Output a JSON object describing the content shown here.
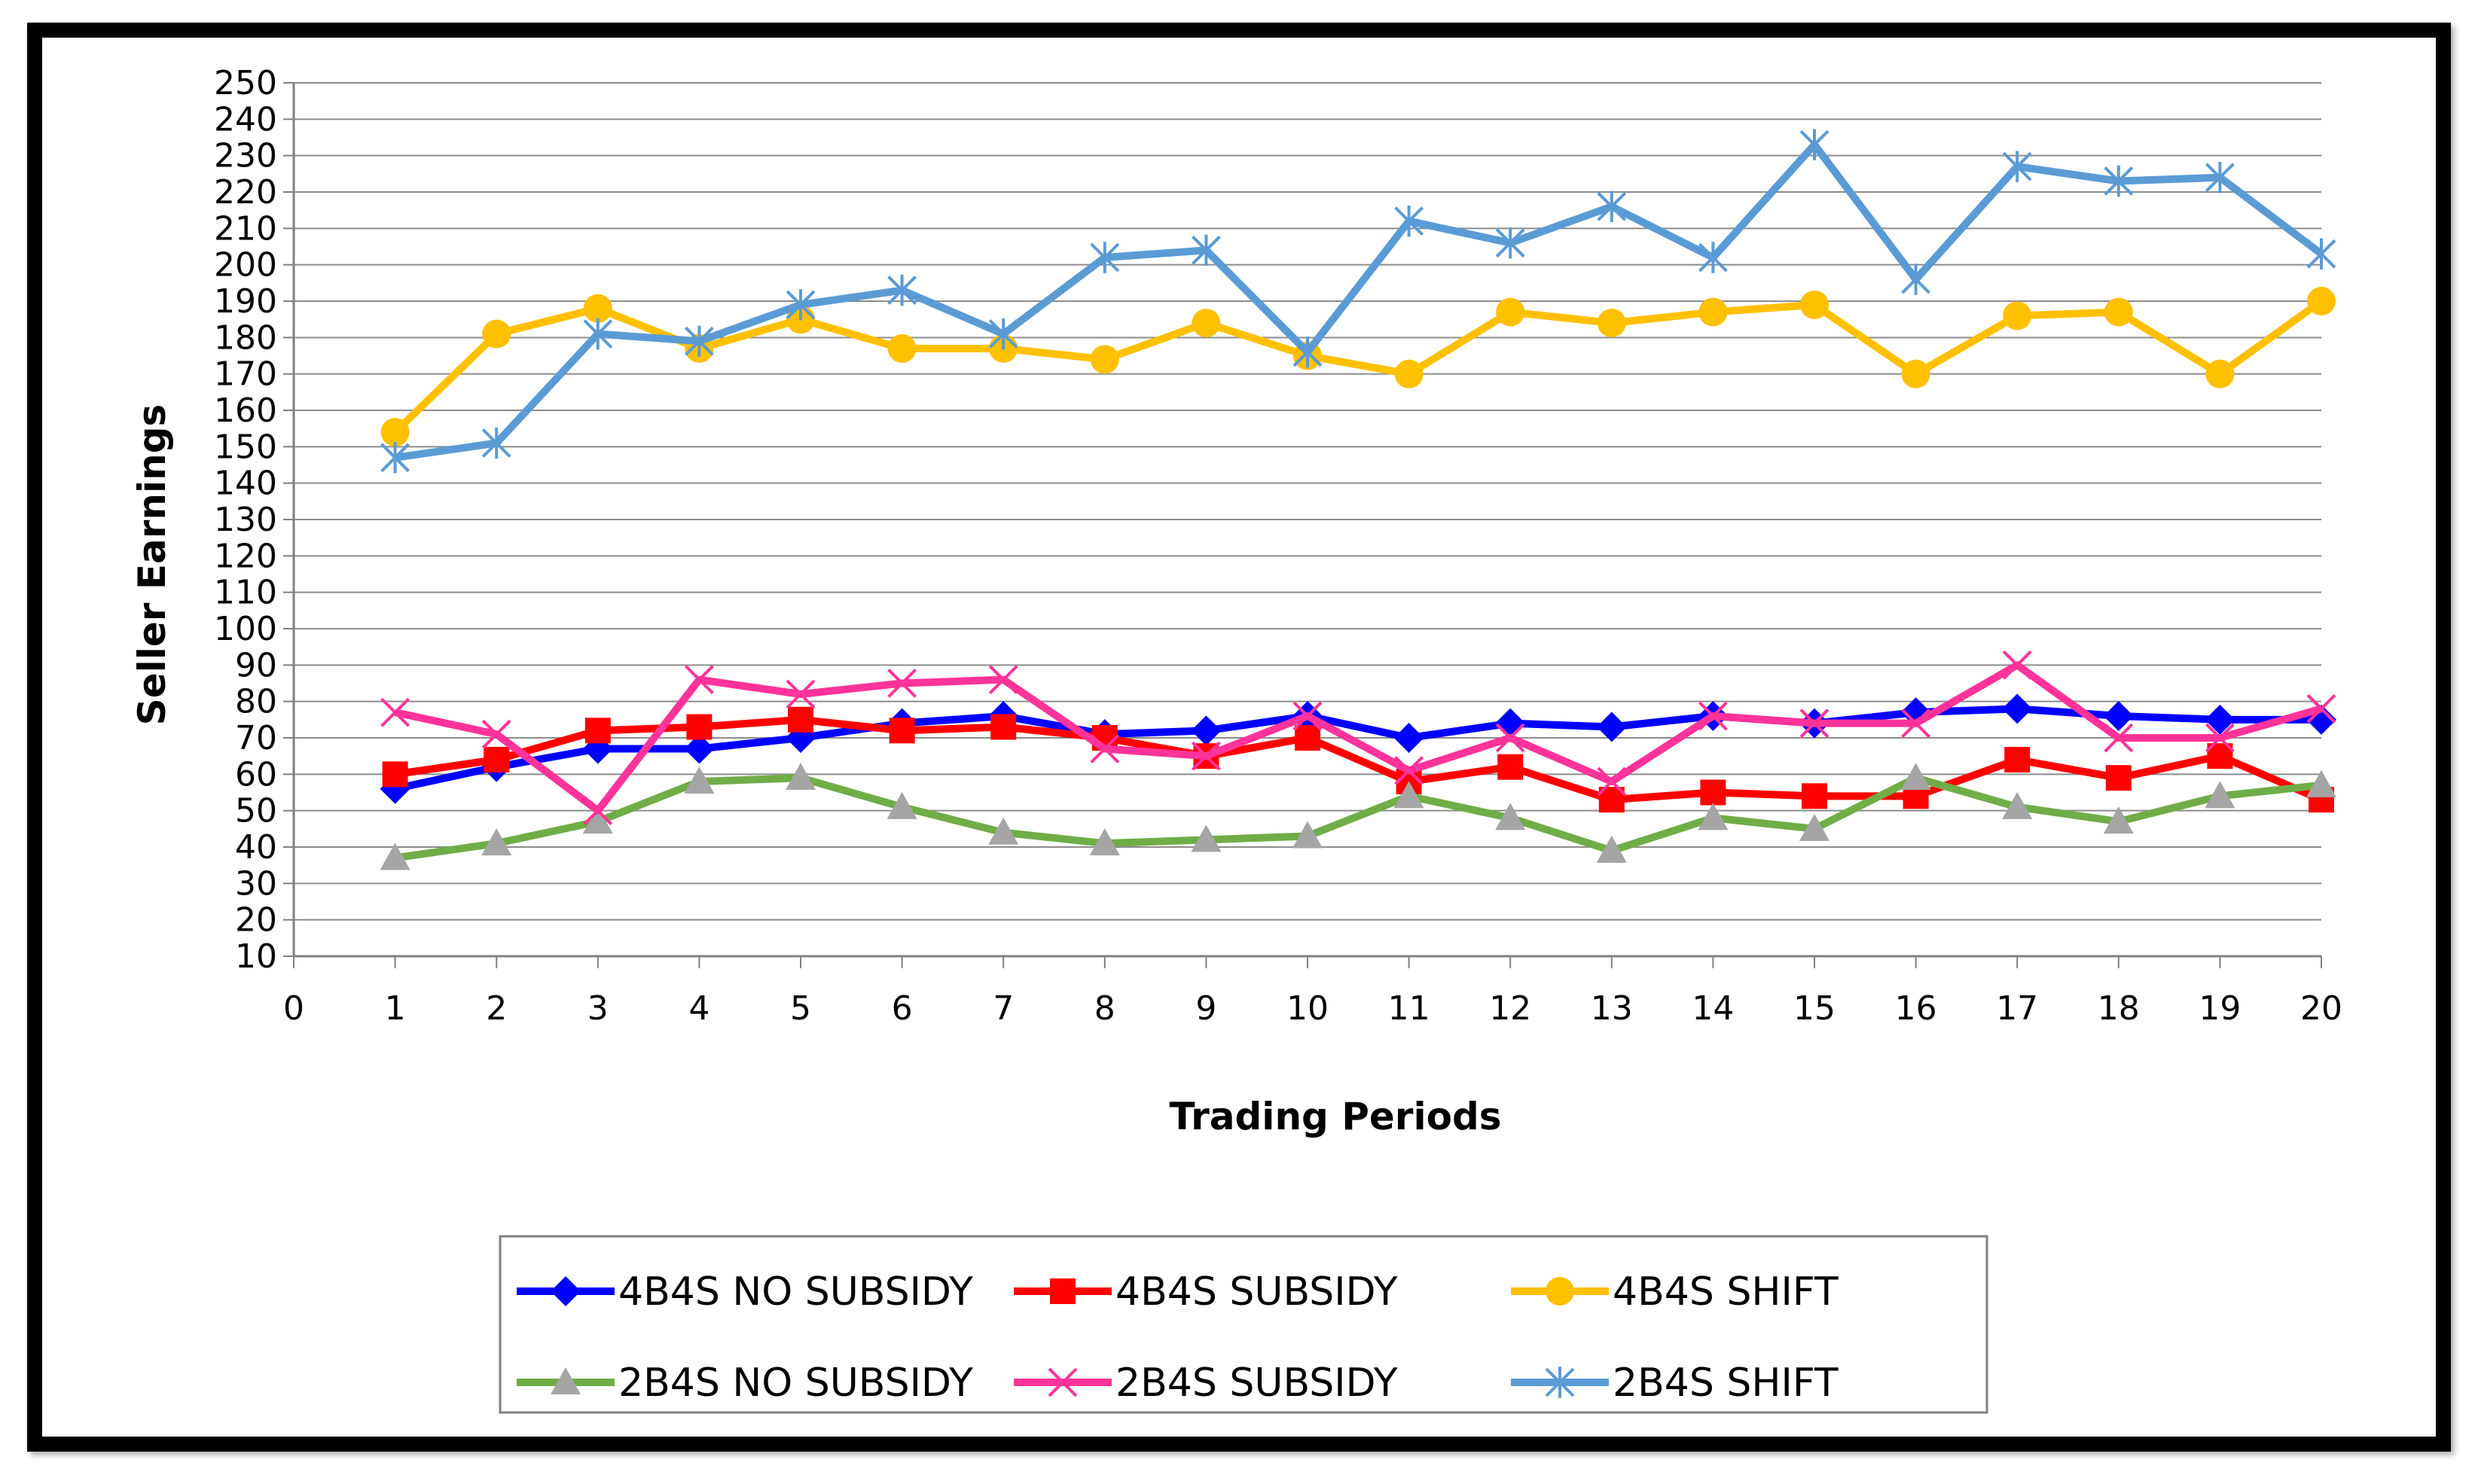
{
  "chart_data": {
    "type": "line",
    "title": "",
    "xlabel": "Trading Periods",
    "ylabel": "Seller Earnings",
    "xlim": [
      0,
      20
    ],
    "ylim": [
      10,
      250
    ],
    "x_ticks": [
      0,
      1,
      2,
      3,
      4,
      5,
      6,
      7,
      8,
      9,
      10,
      11,
      12,
      13,
      14,
      15,
      16,
      17,
      18,
      19,
      20
    ],
    "y_ticks": [
      10,
      20,
      30,
      40,
      50,
      60,
      70,
      80,
      90,
      100,
      110,
      120,
      130,
      140,
      150,
      160,
      170,
      180,
      190,
      200,
      210,
      220,
      230,
      240,
      250
    ],
    "grid": "horizontal",
    "legend_position": "bottom",
    "x": [
      1,
      2,
      3,
      4,
      5,
      6,
      7,
      8,
      9,
      10,
      11,
      12,
      13,
      14,
      15,
      16,
      17,
      18,
      19,
      20
    ],
    "series": [
      {
        "name": "4B4S NO SUBSIDY",
        "color": "#0000FF",
        "marker": "diamond",
        "values": [
          56,
          62,
          67,
          67,
          70,
          74,
          76,
          71,
          72,
          76,
          70,
          74,
          73,
          76,
          74,
          77,
          78,
          76,
          75,
          75
        ]
      },
      {
        "name": "4B4S SUBSIDY",
        "color": "#FF0000",
        "marker": "square",
        "values": [
          60,
          64,
          72,
          73,
          75,
          72,
          73,
          70,
          65,
          70,
          58,
          62,
          53,
          55,
          54,
          54,
          64,
          59,
          65,
          53
        ]
      },
      {
        "name": "4B4S SHIFT",
        "color": "#FFC000",
        "marker": "circle",
        "values": [
          154,
          181,
          188,
          177,
          185,
          177,
          177,
          174,
          184,
          175,
          170,
          187,
          184,
          187,
          189,
          170,
          186,
          187,
          170,
          190
        ]
      },
      {
        "name": "2B4S NO SUBSIDY",
        "color": "#70AD47",
        "marker": "triangle",
        "values": [
          37,
          41,
          47,
          58,
          59,
          51,
          44,
          41,
          42,
          43,
          54,
          48,
          39,
          48,
          45,
          59,
          51,
          47,
          54,
          57
        ]
      },
      {
        "name": "2B4S SUBSIDY",
        "color": "#FF3399",
        "marker": "x",
        "values": [
          77,
          71,
          50,
          86,
          82,
          85,
          86,
          67,
          65,
          76,
          61,
          70,
          58,
          76,
          74,
          74,
          90,
          70,
          70,
          78
        ]
      },
      {
        "name": "2B4S SHIFT",
        "color": "#5B9BD5",
        "marker": "star",
        "values": [
          147,
          151,
          181,
          179,
          189,
          193,
          181,
          202,
          204,
          176,
          212,
          206,
          216,
          202,
          233,
          196,
          227,
          223,
          224,
          203
        ]
      }
    ]
  }
}
